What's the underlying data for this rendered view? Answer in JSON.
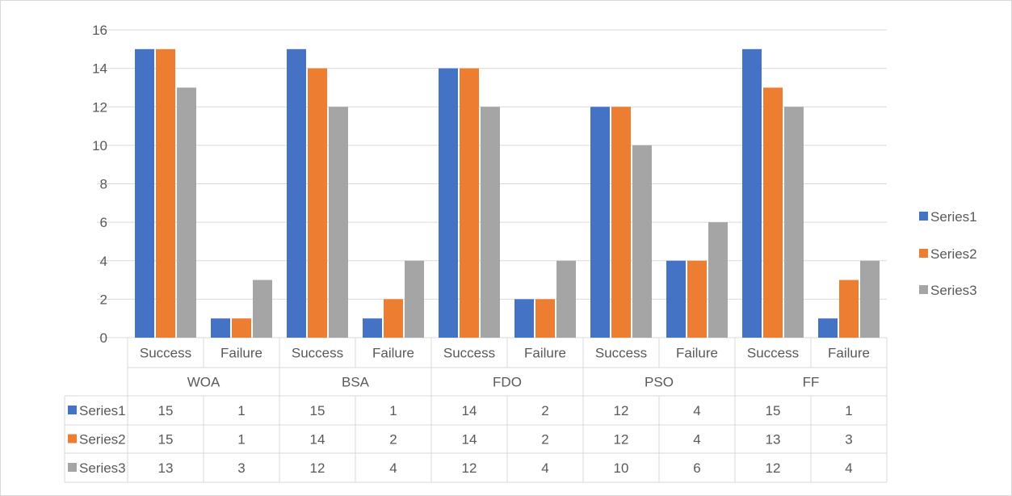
{
  "chart_data": {
    "type": "bar",
    "title": "",
    "xlabel": "",
    "ylabel": "",
    "ylim": [
      0,
      16
    ],
    "y_ticks": [
      0,
      2,
      4,
      6,
      8,
      10,
      12,
      14,
      16
    ],
    "grid": true,
    "legend_position": "right",
    "data_table": true,
    "groups": [
      "WOA",
      "BSA",
      "FDO",
      "PSO",
      "FF"
    ],
    "categories": [
      "Success",
      "Failure",
      "Success",
      "Failure",
      "Success",
      "Failure",
      "Success",
      "Failure",
      "Success",
      "Failure"
    ],
    "series": [
      {
        "name": "Series1",
        "color": "#4472c4",
        "values": [
          15,
          1,
          15,
          1,
          14,
          2,
          12,
          4,
          15,
          1
        ]
      },
      {
        "name": "Series2",
        "color": "#ed7d31",
        "values": [
          15,
          1,
          14,
          2,
          14,
          2,
          12,
          4,
          13,
          3
        ]
      },
      {
        "name": "Series3",
        "color": "#a5a5a5",
        "values": [
          13,
          3,
          12,
          4,
          12,
          4,
          10,
          6,
          12,
          4
        ]
      }
    ]
  }
}
